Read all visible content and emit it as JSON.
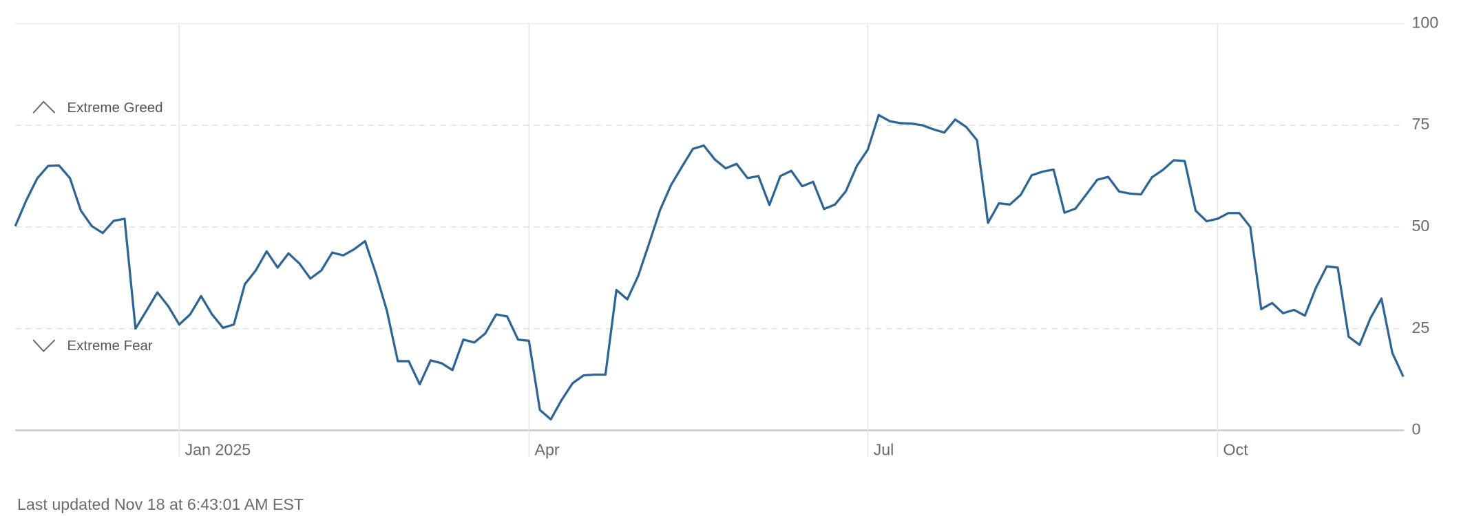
{
  "chart_data": {
    "type": "line",
    "categories": [
      null,
      null,
      null,
      null,
      null,
      null,
      null,
      null,
      null,
      null,
      null,
      null,
      null,
      null,
      null,
      "Jan 2025",
      null,
      null,
      null,
      null,
      null,
      null,
      null,
      null,
      null,
      null,
      null,
      null,
      null,
      null,
      null,
      null,
      null,
      null,
      null,
      null,
      null,
      null,
      null,
      null,
      null,
      null,
      null,
      null,
      null,
      null,
      null,
      "Apr",
      null,
      null,
      null,
      null,
      null,
      null,
      null,
      null,
      null,
      null,
      null,
      null,
      null,
      null,
      null,
      null,
      null,
      null,
      null,
      null,
      null,
      null,
      null,
      null,
      null,
      null,
      null,
      null,
      null,
      null,
      "Jul",
      null,
      null,
      null,
      null,
      null,
      null,
      null,
      null,
      null,
      null,
      null,
      null,
      null,
      null,
      null,
      null,
      null,
      null,
      null,
      null,
      null,
      null,
      null,
      null,
      null,
      null,
      null,
      null,
      null,
      null,
      null,
      "Oct",
      null,
      null,
      null,
      null,
      null,
      null,
      null,
      null,
      null,
      null,
      null,
      null,
      null,
      null,
      null,
      null,
      null
    ],
    "values": [
      50.2,
      56.5,
      61.9,
      65,
      65.1,
      62,
      54,
      50.2,
      48.5,
      51.5,
      52,
      25,
      29.4,
      33.9,
      30.5,
      26,
      28.5,
      33,
      28.5,
      25.2,
      26,
      35.9,
      39.3,
      44,
      40,
      43.5,
      41,
      37.3,
      39.3,
      43.7,
      43,
      44.5,
      46.5,
      38.5,
      29.4,
      17,
      17,
      11.3,
      17.2,
      16.5,
      14.8,
      22.3,
      21.6,
      23.8,
      28.5,
      28,
      22.3,
      22,
      5,
      2.7,
      7.5,
      11.6,
      13.5,
      13.7,
      13.7,
      34.5,
      32.2,
      38,
      46,
      54.2,
      60.3,
      64.8,
      69.2,
      70,
      66.6,
      64.4,
      65.5,
      62,
      62.5,
      55.4,
      62.5,
      63.8,
      60,
      61.1,
      54.4,
      55.5,
      58.8,
      65,
      69,
      77.5,
      76,
      75.5,
      75.4,
      75,
      74,
      73.2,
      76.4,
      74.6,
      71.3,
      51,
      55.8,
      55.5,
      57.9,
      62.7,
      63.6,
      64.1,
      53.5,
      54.5,
      58,
      61.6,
      62.3,
      58.7,
      58.2,
      58,
      62.2,
      64,
      66.4,
      66.2,
      54,
      51.4,
      52,
      53.4,
      53.4,
      50,
      29.8,
      31.3,
      28.8,
      29.6,
      28.2,
      35,
      40.3,
      40,
      23,
      21,
      27.6,
      32.4,
      19,
      13.2
    ],
    "color": "#2e6594",
    "ylim": [
      0,
      100
    ],
    "yticks": [
      0,
      25,
      50,
      75,
      100
    ],
    "grid": true,
    "annotations": [
      "Extreme Greed",
      "Extreme Fear"
    ]
  },
  "footer": "Last updated Nov 18 at 6:43:01 AM EST"
}
